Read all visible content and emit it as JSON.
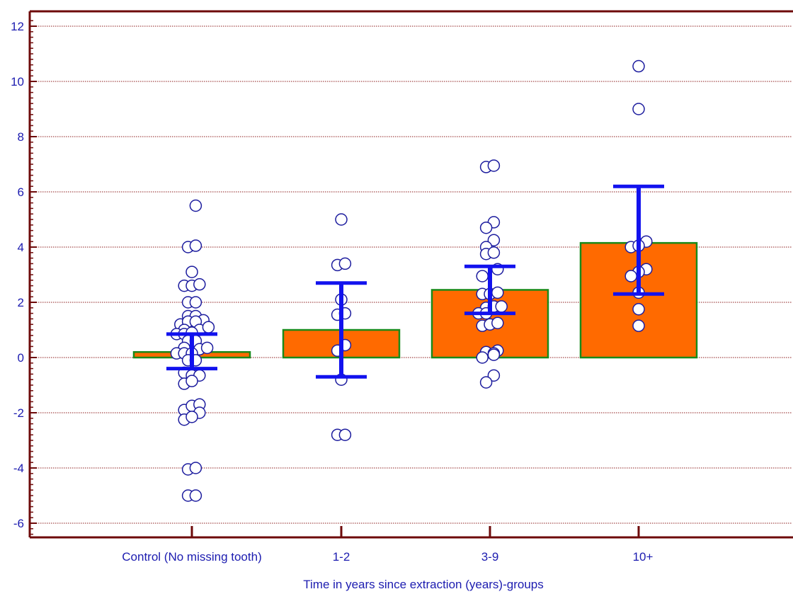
{
  "chart_data": {
    "type": "bar",
    "title": "",
    "xlabel": "Time in years since extraction (years)-groups",
    "ylabel": "",
    "ylim": [
      -6.5,
      12.3
    ],
    "yticks": [
      -6,
      -4,
      -2,
      0,
      2,
      4,
      6,
      8,
      10,
      12
    ],
    "ytick_labels": [
      "-6",
      "-4",
      "-2",
      "0",
      "2",
      "4",
      "6",
      "8",
      "10",
      "12"
    ],
    "grid": true,
    "categories": [
      "Control (No missing tooth)",
      "1-2",
      "3-9",
      "10+"
    ],
    "values": [
      0.2,
      1.0,
      2.45,
      4.15
    ],
    "error_bars": [
      {
        "low": -0.4,
        "high": 0.85
      },
      {
        "low": -0.7,
        "high": 2.7
      },
      {
        "low": 1.6,
        "high": 3.3
      },
      {
        "low": 2.3,
        "high": 6.2
      }
    ],
    "points": [
      [
        {
          "dx": 0.3,
          "y": 5.5
        },
        {
          "dx": -0.3,
          "y": 4.0
        },
        {
          "dx": 0.3,
          "y": 4.05
        },
        {
          "dx": 0.0,
          "y": 3.1
        },
        {
          "dx": -0.6,
          "y": 2.6
        },
        {
          "dx": 0.0,
          "y": 2.6
        },
        {
          "dx": 0.6,
          "y": 2.65
        },
        {
          "dx": -0.3,
          "y": 2.0
        },
        {
          "dx": 0.3,
          "y": 2.0
        },
        {
          "dx": -0.3,
          "y": 1.5
        },
        {
          "dx": 0.3,
          "y": 1.5
        },
        {
          "dx": -0.9,
          "y": 1.2
        },
        {
          "dx": 0.9,
          "y": 1.35
        },
        {
          "dx": -0.3,
          "y": 1.3
        },
        {
          "dx": 0.3,
          "y": 1.3
        },
        {
          "dx": -0.6,
          "y": 1.0
        },
        {
          "dx": 0.6,
          "y": 1.0
        },
        {
          "dx": 1.3,
          "y": 1.1
        },
        {
          "dx": -1.2,
          "y": 0.85
        },
        {
          "dx": -0.6,
          "y": 0.85
        },
        {
          "dx": 0.0,
          "y": 0.9
        },
        {
          "dx": -0.3,
          "y": 0.6
        },
        {
          "dx": 0.3,
          "y": 0.6
        },
        {
          "dx": -0.6,
          "y": 0.35
        },
        {
          "dx": 0.6,
          "y": 0.3
        },
        {
          "dx": 1.2,
          "y": 0.35
        },
        {
          "dx": -1.2,
          "y": 0.15
        },
        {
          "dx": -0.6,
          "y": 0.15
        },
        {
          "dx": 0.0,
          "y": 0.15
        },
        {
          "dx": -0.3,
          "y": -0.1
        },
        {
          "dx": 0.3,
          "y": -0.1
        },
        {
          "dx": -0.6,
          "y": -0.55
        },
        {
          "dx": 0.0,
          "y": -0.65
        },
        {
          "dx": 0.6,
          "y": -0.65
        },
        {
          "dx": -0.6,
          "y": -0.95
        },
        {
          "dx": 0.0,
          "y": -0.85
        },
        {
          "dx": -0.6,
          "y": -1.9
        },
        {
          "dx": 0.0,
          "y": -1.75
        },
        {
          "dx": 0.6,
          "y": -1.7
        },
        {
          "dx": 0.6,
          "y": -2.0
        },
        {
          "dx": -0.6,
          "y": -2.25
        },
        {
          "dx": 0.0,
          "y": -2.15
        },
        {
          "dx": -0.3,
          "y": -4.05
        },
        {
          "dx": 0.3,
          "y": -4.0
        },
        {
          "dx": -0.3,
          "y": -5.0
        },
        {
          "dx": 0.3,
          "y": -5.0
        }
      ],
      [
        {
          "dx": 0.0,
          "y": 5.0
        },
        {
          "dx": -0.3,
          "y": 3.35
        },
        {
          "dx": 0.3,
          "y": 3.4
        },
        {
          "dx": 0.0,
          "y": 2.1
        },
        {
          "dx": -0.3,
          "y": 1.55
        },
        {
          "dx": 0.3,
          "y": 1.6
        },
        {
          "dx": 0.3,
          "y": 0.45
        },
        {
          "dx": -0.3,
          "y": 0.25
        },
        {
          "dx": 0.0,
          "y": -0.8
        },
        {
          "dx": -0.3,
          "y": -2.8
        },
        {
          "dx": 0.3,
          "y": -2.8
        }
      ],
      [
        {
          "dx": -0.3,
          "y": 6.9
        },
        {
          "dx": 0.3,
          "y": 6.95
        },
        {
          "dx": 0.3,
          "y": 4.9
        },
        {
          "dx": -0.3,
          "y": 4.7
        },
        {
          "dx": 0.3,
          "y": 4.25
        },
        {
          "dx": -0.3,
          "y": 4.0
        },
        {
          "dx": -0.3,
          "y": 3.75
        },
        {
          "dx": 0.3,
          "y": 3.8
        },
        {
          "dx": 0.6,
          "y": 3.2
        },
        {
          "dx": -0.6,
          "y": 2.95
        },
        {
          "dx": -0.6,
          "y": 2.3
        },
        {
          "dx": 0.0,
          "y": 2.3
        },
        {
          "dx": 0.6,
          "y": 2.35
        },
        {
          "dx": -0.3,
          "y": 1.8
        },
        {
          "dx": 0.3,
          "y": 1.85
        },
        {
          "dx": 0.9,
          "y": 1.85
        },
        {
          "dx": -0.9,
          "y": 1.6
        },
        {
          "dx": -0.3,
          "y": 1.6
        },
        {
          "dx": -0.6,
          "y": 1.15
        },
        {
          "dx": 0.0,
          "y": 1.2
        },
        {
          "dx": 0.6,
          "y": 1.25
        },
        {
          "dx": 0.6,
          "y": 0.25
        },
        {
          "dx": -0.3,
          "y": 0.2
        },
        {
          "dx": 0.3,
          "y": 0.15
        },
        {
          "dx": 0.3,
          "y": 0.1
        },
        {
          "dx": -0.6,
          "y": 0.0
        },
        {
          "dx": 0.3,
          "y": -0.65
        },
        {
          "dx": -0.3,
          "y": -0.9
        }
      ],
      [
        {
          "dx": 0.0,
          "y": 10.55
        },
        {
          "dx": 0.0,
          "y": 9.0
        },
        {
          "dx": 0.6,
          "y": 4.2
        },
        {
          "dx": -0.6,
          "y": 4.0
        },
        {
          "dx": 0.0,
          "y": 4.05
        },
        {
          "dx": 0.6,
          "y": 3.2
        },
        {
          "dx": 0.0,
          "y": 3.1
        },
        {
          "dx": -0.6,
          "y": 2.95
        },
        {
          "dx": 0.0,
          "y": 2.35
        },
        {
          "dx": 0.0,
          "y": 1.75
        },
        {
          "dx": 0.0,
          "y": 1.15
        }
      ]
    ],
    "colors": {
      "bar_fill": "#ff6a00",
      "bar_edge": "#1a8a1a",
      "error_bar": "#1212ee",
      "axis": "#6e0a0a",
      "grid": "#8c1c1c",
      "tick_text": "#1c1cb0",
      "point_edge": "#1c1c9e",
      "point_fill": "#ffffff"
    }
  }
}
